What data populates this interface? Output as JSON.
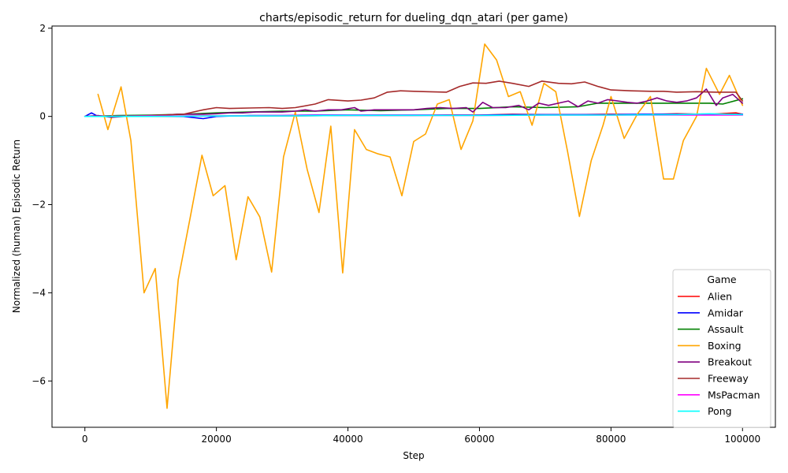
{
  "chart_data": {
    "type": "line",
    "title": "charts/episodic_return for dueling_dqn_atari (per game)",
    "xlabel": "Step",
    "ylabel": "Normalized (human) Episodic Return",
    "xlim": [
      -5000,
      105000
    ],
    "ylim": [
      -7.05,
      2.05
    ],
    "xticks": [
      0,
      20000,
      40000,
      60000,
      80000,
      100000
    ],
    "xtick_labels": [
      "0",
      "20000",
      "40000",
      "60000",
      "80000",
      "100000"
    ],
    "yticks": [
      -6,
      -4,
      -2,
      0,
      2
    ],
    "ytick_labels": [
      "−6",
      "−4",
      "−2",
      "0",
      "2"
    ],
    "grid": false,
    "legend": {
      "title": "Game",
      "placement": "lower-right"
    },
    "series": [
      {
        "name": "Alien",
        "color": "#ff0000",
        "x": [
          0,
          10000,
          20000,
          30000,
          40000,
          50000,
          55000,
          60000,
          65000,
          70000,
          75000,
          80000,
          85000,
          90000,
          95000,
          99000,
          100000
        ],
        "y": [
          0,
          0.0,
          0.01,
          0.01,
          0.02,
          0.02,
          0.03,
          0.03,
          0.05,
          0.04,
          0.04,
          0.05,
          0.04,
          0.06,
          0.05,
          0.08,
          0.05
        ]
      },
      {
        "name": "Amidar",
        "color": "#0000ff",
        "x": [
          0,
          1000,
          2000,
          5000,
          8000,
          10000,
          15000,
          18000,
          20000,
          25000,
          30000,
          35000,
          40000,
          45000,
          50000,
          55000,
          60000,
          65000,
          70000,
          75000,
          80000,
          85000,
          90000,
          95000,
          100000
        ],
        "y": [
          0,
          0.08,
          0.0,
          0.0,
          0.02,
          0.01,
          0.0,
          -0.05,
          0.0,
          0.02,
          0.02,
          0.03,
          0.03,
          0.03,
          0.03,
          0.03,
          0.03,
          0.04,
          0.04,
          0.04,
          0.04,
          0.05,
          0.05,
          0.05,
          0.05
        ]
      },
      {
        "name": "Assault",
        "color": "#008000",
        "x": [
          0,
          5000,
          10000,
          15000,
          20000,
          25000,
          30000,
          35000,
          40000,
          45000,
          50000,
          55000,
          60000,
          65000,
          70000,
          75000,
          78000,
          80000,
          85000,
          90000,
          95000,
          97000,
          100000
        ],
        "y": [
          0,
          0.02,
          0.03,
          0.05,
          0.08,
          0.1,
          0.12,
          0.12,
          0.15,
          0.13,
          0.15,
          0.18,
          0.18,
          0.22,
          0.2,
          0.22,
          0.3,
          0.3,
          0.3,
          0.3,
          0.3,
          0.28,
          0.4
        ]
      },
      {
        "name": "Boxing",
        "color": "#ffa500",
        "x": [
          2000,
          3500,
          5500,
          7000,
          9000,
          10700,
          12500,
          14200,
          16000,
          17800,
          19500,
          21300,
          23000,
          24800,
          26600,
          28400,
          30200,
          32000,
          33800,
          35600,
          37400,
          39200,
          41000,
          42800,
          44600,
          46400,
          48200,
          50000,
          51800,
          53600,
          55400,
          57200,
          59000,
          60800,
          62600,
          64400,
          66200,
          68000,
          69800,
          71600,
          73400,
          75200,
          77000,
          78800,
          80000,
          82000,
          84000,
          86000,
          88000,
          89500,
          91000,
          93000,
          94500,
          96500,
          98000,
          100000
        ],
        "y": [
          0.5,
          -0.3,
          0.67,
          -0.55,
          -4.0,
          -3.45,
          -6.62,
          -3.7,
          -2.3,
          -0.88,
          -1.8,
          -1.57,
          -3.25,
          -1.82,
          -2.28,
          -3.53,
          -0.92,
          0.1,
          -1.2,
          -2.18,
          -0.22,
          -3.55,
          -0.3,
          -0.75,
          -0.85,
          -0.92,
          -1.8,
          -0.57,
          -0.4,
          0.28,
          0.38,
          -0.75,
          -0.1,
          1.64,
          1.28,
          0.45,
          0.56,
          -0.2,
          0.75,
          0.56,
          -0.8,
          -2.27,
          -1.0,
          -0.2,
          0.45,
          -0.5,
          0.05,
          0.45,
          -1.42,
          -1.42,
          -0.55,
          0.0,
          1.09,
          0.5,
          0.93,
          0.25
        ]
      },
      {
        "name": "Breakout",
        "color": "#800080",
        "x": [
          0,
          2000,
          4000,
          6000,
          8000,
          10000,
          12000,
          14000,
          16000,
          18000,
          20000,
          22000,
          24000,
          26000,
          28000,
          30000,
          32000,
          33500,
          35000,
          37000,
          39000,
          41000,
          42000,
          44000,
          46000,
          48000,
          50000,
          52000,
          54000,
          56000,
          58000,
          59000,
          60500,
          62000,
          64000,
          66000,
          67500,
          69000,
          70500,
          72000,
          73500,
          75000,
          76500,
          78000,
          79500,
          81000,
          82500,
          84000,
          85500,
          87000,
          88500,
          90000,
          91500,
          93000,
          94500,
          96000,
          97000,
          98500,
          100000
        ],
        "y": [
          0,
          0.02,
          -0.02,
          0.0,
          0.0,
          0.02,
          0.03,
          0.05,
          0.05,
          0.05,
          0.06,
          0.08,
          0.08,
          0.1,
          0.1,
          0.1,
          0.12,
          0.15,
          0.12,
          0.15,
          0.15,
          0.2,
          0.12,
          0.15,
          0.15,
          0.15,
          0.15,
          0.18,
          0.2,
          0.18,
          0.2,
          0.1,
          0.32,
          0.2,
          0.2,
          0.25,
          0.15,
          0.3,
          0.25,
          0.3,
          0.35,
          0.22,
          0.35,
          0.3,
          0.38,
          0.35,
          0.32,
          0.3,
          0.35,
          0.42,
          0.35,
          0.32,
          0.35,
          0.42,
          0.62,
          0.25,
          0.42,
          0.5,
          0.3
        ]
      },
      {
        "name": "Freeway",
        "color": "#a52a2a",
        "x": [
          0,
          5000,
          10000,
          15000,
          18000,
          20000,
          22000,
          25000,
          28000,
          30000,
          32000,
          35000,
          37000,
          40000,
          42000,
          44000,
          46000,
          48000,
          50000,
          52000,
          55000,
          57000,
          59000,
          61000,
          63000,
          65000,
          67500,
          69500,
          72000,
          74000,
          76000,
          78000,
          80000,
          83000,
          86000,
          88000,
          90000,
          93000,
          96000,
          99000,
          100000
        ],
        "y": [
          0,
          0.0,
          0.02,
          0.05,
          0.15,
          0.2,
          0.18,
          0.19,
          0.2,
          0.18,
          0.2,
          0.28,
          0.38,
          0.35,
          0.37,
          0.42,
          0.55,
          0.58,
          0.57,
          0.56,
          0.55,
          0.68,
          0.76,
          0.75,
          0.8,
          0.75,
          0.68,
          0.8,
          0.75,
          0.74,
          0.78,
          0.68,
          0.6,
          0.58,
          0.57,
          0.57,
          0.55,
          0.56,
          0.55,
          0.55,
          0.35
        ]
      },
      {
        "name": "MsPacman",
        "color": "#ff00ff",
        "x": [
          0,
          10000,
          20000,
          30000,
          40000,
          50000,
          60000,
          70000,
          80000,
          90000,
          100000
        ],
        "y": [
          0,
          0.01,
          0.01,
          0.02,
          0.02,
          0.02,
          0.02,
          0.03,
          0.03,
          0.03,
          0.03
        ]
      },
      {
        "name": "Pong",
        "color": "#00ffff",
        "x": [
          0,
          10000,
          20000,
          30000,
          40000,
          50000,
          60000,
          70000,
          80000,
          90000,
          95000,
          100000
        ],
        "y": [
          0,
          0.0,
          0.01,
          0.01,
          0.02,
          0.02,
          0.02,
          0.03,
          0.03,
          0.04,
          0.06,
          0.04
        ]
      }
    ]
  }
}
